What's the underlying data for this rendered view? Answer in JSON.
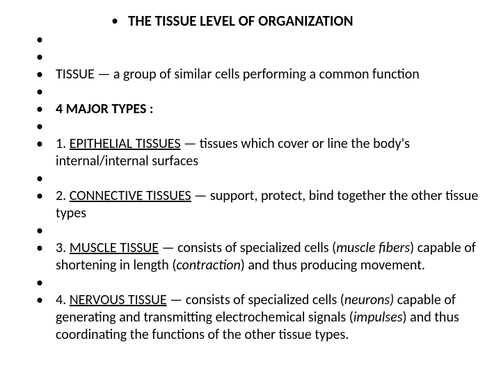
{
  "title": "THE TISSUE LEVEL OF ORGANIZATION",
  "tissue_def_pre": "TISSUE — a group of similar cells performing a common function",
  "major_types": "4 MAJOR TYPES :",
  "item1_num": "1. ",
  "item1_name": "EPITHELIAL TISSUES",
  "item1_rest": " — tissues which cover or line the body's internal/internal surfaces",
  "item2_num": "2. ",
  "item2_name": "CONNECTIVE TISSUES",
  "item2_rest": " — support, protect, bind together the other tissue types",
  "item3_num": "3. ",
  "item3_name": "MUSCLE TISSUE",
  "item3_rest_a": " — consists of specialized cells (",
  "item3_em_a": "muscle fibers",
  "item3_rest_b": ") capable of shortening in length (",
  "item3_em_b": "contraction",
  "item3_rest_c": ") and thus producing movement.",
  "item4_num": "4. ",
  "item4_name": "NERVOUS TISSUE",
  "item4_rest_a": " — consists of specialized cells (",
  "item4_em_a": "neurons)",
  "item4_rest_b": " capable of generating and transmitting electrochemical signals (",
  "item4_em_b": "impulses",
  "item4_rest_c": ") and thus coordinating the functions of the other tissue types.",
  "colors": {
    "background": "#ffffff",
    "text": "#000000"
  },
  "font": {
    "family": "Calibri",
    "body_size_pt": 20,
    "title_size_pt": 21
  }
}
